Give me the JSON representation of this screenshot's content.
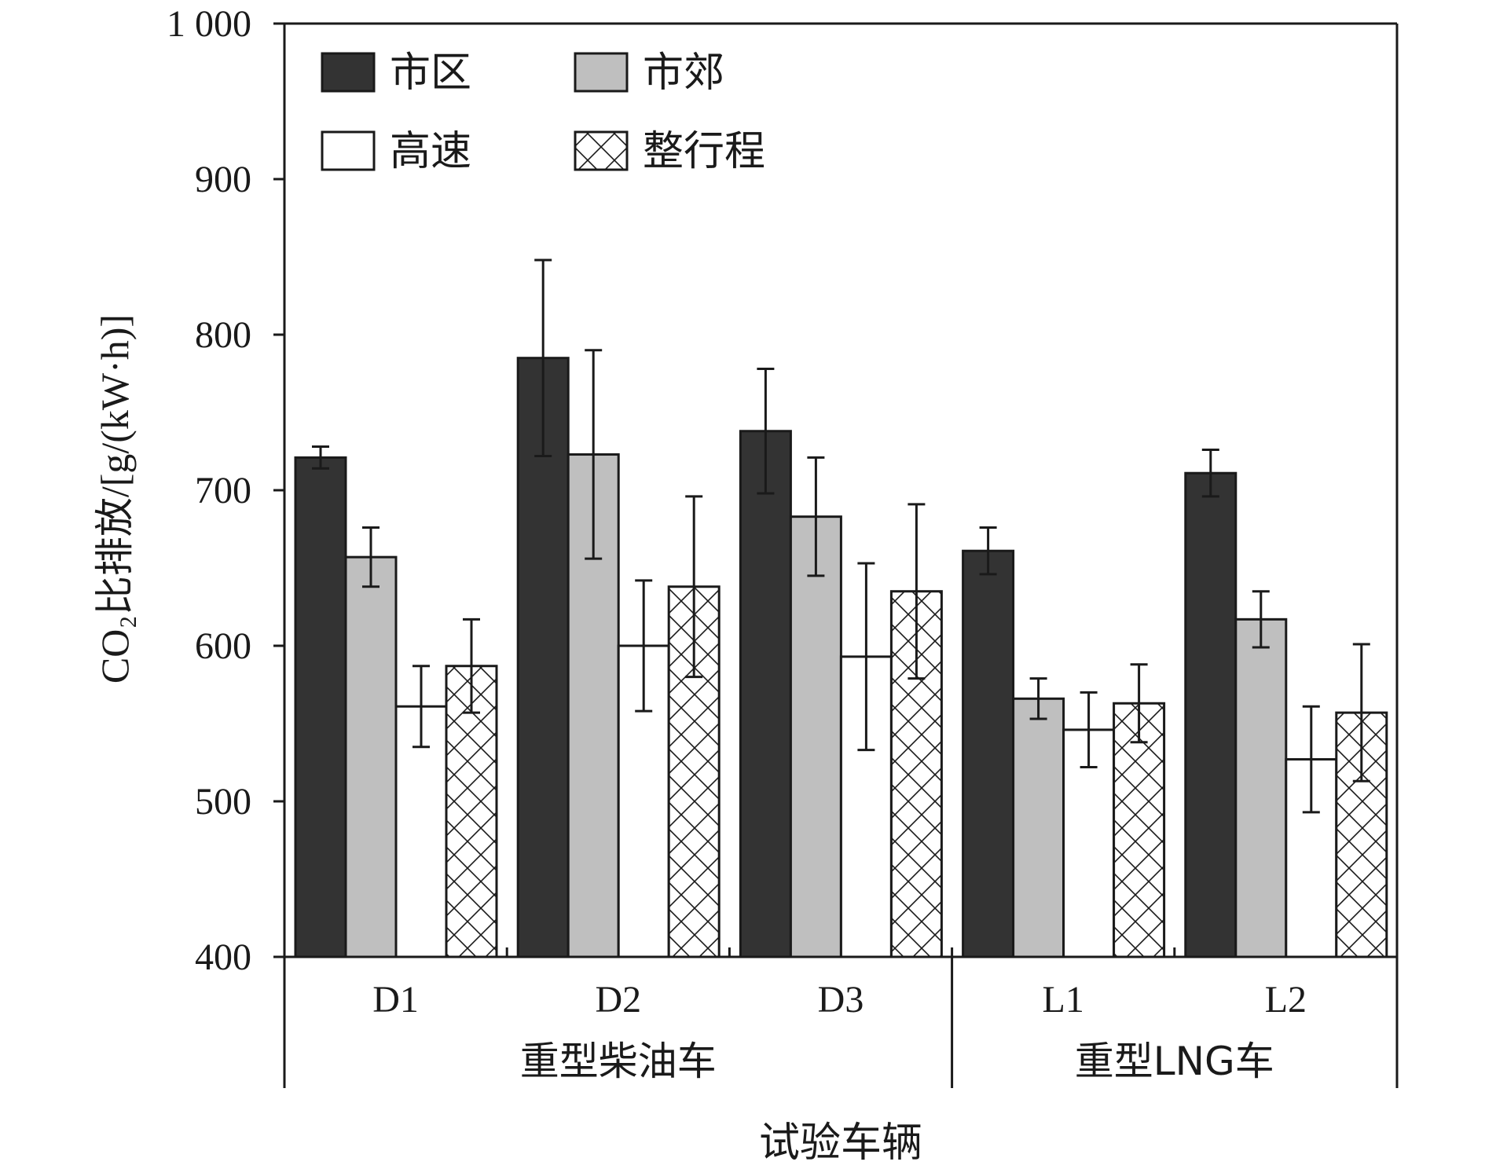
{
  "chart_data": {
    "type": "bar",
    "categories": [
      "D1",
      "D2",
      "D3",
      "L1",
      "L2"
    ],
    "groups": [
      {
        "label": "重型柴油车",
        "categories": [
          "D1",
          "D2",
          "D3"
        ]
      },
      {
        "label": "重型LNG车",
        "categories": [
          "L1",
          "L2"
        ]
      }
    ],
    "series": [
      {
        "name": "市区",
        "values": [
          721,
          785,
          738,
          661,
          711
        ],
        "errors": [
          7,
          63,
          40,
          15,
          15
        ],
        "color": "#333333",
        "pattern": "solid"
      },
      {
        "name": "市郊",
        "values": [
          657,
          723,
          683,
          566,
          617
        ],
        "errors": [
          19,
          67,
          38,
          13,
          18
        ],
        "color": "#bfbfbf",
        "pattern": "solid"
      },
      {
        "name": "高速",
        "values": [
          561,
          600,
          593,
          546,
          527
        ],
        "errors": [
          26,
          42,
          60,
          24,
          34
        ],
        "color": "#ffffff",
        "pattern": "solid"
      },
      {
        "name": "整行程",
        "values": [
          587,
          638,
          635,
          563,
          557
        ],
        "errors": [
          30,
          58,
          56,
          25,
          44
        ],
        "color": "#ffffff",
        "pattern": "crosshatch"
      }
    ],
    "xlabel": "试验车辆",
    "ylabel": "CO₂比排放/[g/(kW·h)]",
    "ylim": [
      400,
      1000
    ],
    "yticks": [
      400,
      500,
      600,
      700,
      800,
      900,
      1000
    ],
    "ytick_labels": [
      "400",
      "500",
      "600",
      "700",
      "800",
      "900",
      "1 000"
    ],
    "legend_position": "top-left",
    "grid": false
  }
}
